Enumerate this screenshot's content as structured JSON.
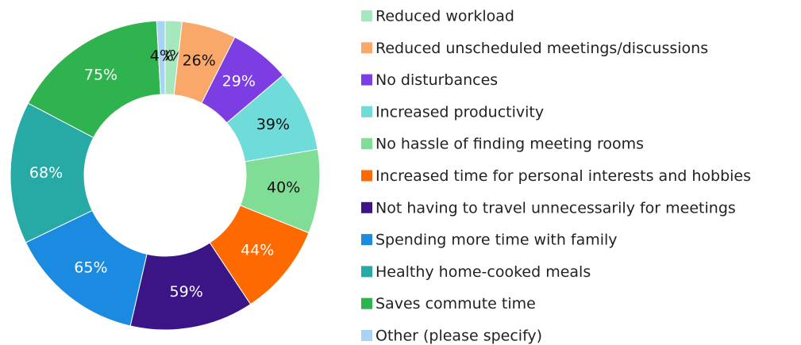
{
  "chart_data": {
    "type": "pie",
    "donut": true,
    "categories": [
      "Reduced workload",
      "Reduced unscheduled meetings/discussions",
      "No disturbances",
      "Increased productivity",
      "No hassle of finding meeting rooms",
      "Increased time for personal interests and hobbies",
      "Not having to travel unnecessarily for meetings",
      "Spending more time with family",
      "Healthy home-cooked meals",
      "Saves commute time",
      "Other (please specify)"
    ],
    "values": [
      8,
      26,
      29,
      39,
      40,
      44,
      59,
      65,
      68,
      75,
      4
    ],
    "value_labels": [
      "8%",
      "26%",
      "29%",
      "39%",
      "40%",
      "44%",
      "59%",
      "65%",
      "68%",
      "75%",
      "4%"
    ],
    "colors": [
      "#a6e8bd",
      "#f9a86a",
      "#7c3ee2",
      "#6fdcd9",
      "#7fdd95",
      "#ff6a00",
      "#3b1586",
      "#1b8be1",
      "#27a9a5",
      "#2fb34f",
      "#a9d3f5"
    ],
    "legend": "right"
  }
}
